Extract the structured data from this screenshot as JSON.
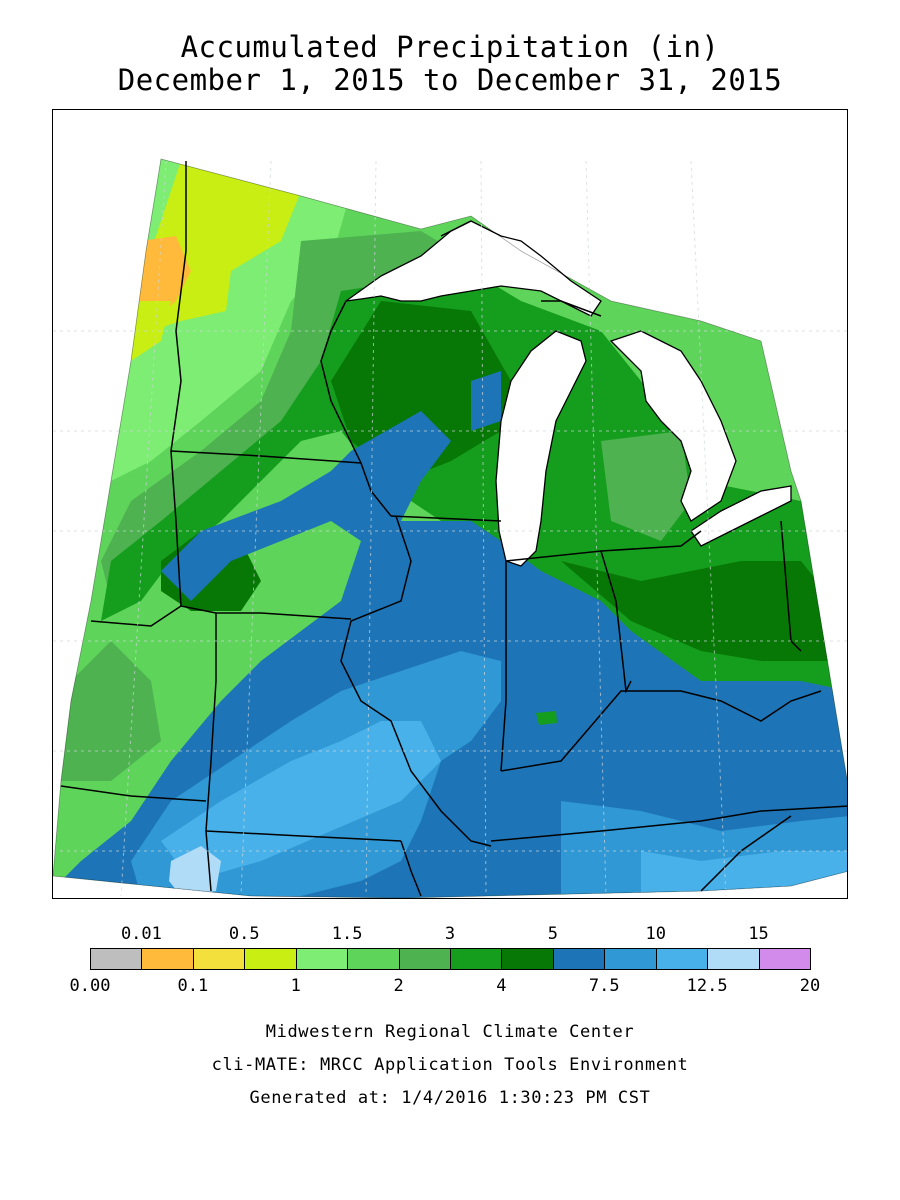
{
  "title_line1": "Accumulated Precipitation (in)",
  "title_line2": "December 1, 2015 to December 31, 2015",
  "legend": {
    "colors": [
      "#bebebe",
      "#ffba3b",
      "#f3e03d",
      "#c8ee13",
      "#7ded73",
      "#5ed55a",
      "#4db24f",
      "#159d1e",
      "#077806",
      "#1d74b6",
      "#2f98d5",
      "#48b1ea",
      "#b0dcf7",
      "#d28aeb"
    ],
    "top_labels": [
      "0.01",
      "0.5",
      "1.5",
      "3",
      "5",
      "10",
      "15"
    ],
    "bottom_labels": [
      "0.00",
      "0.1",
      "1",
      "2",
      "4",
      "7.5",
      "12.5",
      "20"
    ]
  },
  "credits": {
    "line1": "Midwestern Regional Climate Center",
    "line2": "cli-MATE: MRCC Application Tools Environment",
    "line3": "Generated at: 1/4/2016 1:30:23 PM CST"
  }
}
